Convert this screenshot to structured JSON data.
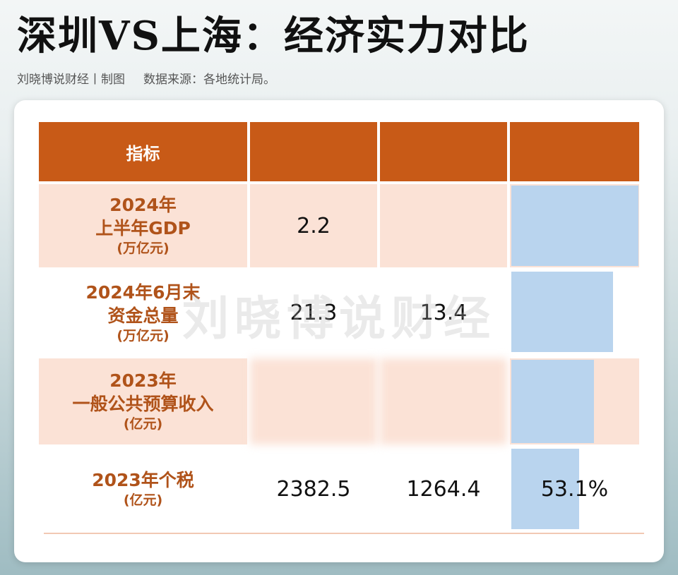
{
  "title": "深圳VS上海：经济实力对比",
  "subtitle": {
    "author": "刘晓博说财经丨制图",
    "source": "数据来源：各地统计局。"
  },
  "watermark": "刘晓博说财经",
  "colors": {
    "header_bg": "#c85a17",
    "row_pink": "#fbe2d6",
    "label_text": "#b0531a",
    "bar_blue": "#b9d4ee"
  },
  "table": {
    "headers": [
      "指标",
      "",
      "",
      ""
    ],
    "rows": [
      {
        "label_lines": [
          "2024年",
          "上半年GDP",
          "(万亿元)"
        ],
        "col1": "2.2",
        "col2": "",
        "col3": "",
        "bar_fraction": 1.0
      },
      {
        "label_lines": [
          "2024年6月末",
          "资金总量",
          "(万亿元)"
        ],
        "col1": "21.3",
        "col2": "13.4",
        "col3": "",
        "bar_fraction": 0.8
      },
      {
        "label_lines": [
          "2023年",
          "一般公共预算收入",
          "(亿元)"
        ],
        "col1": "",
        "col2": "",
        "col3": "",
        "bar_fraction": 0.65
      },
      {
        "label_lines": [
          "2023年个税",
          "(亿元)"
        ],
        "col1": "2382.5",
        "col2": "1264.4",
        "col3": "53.1%",
        "bar_fraction": 0.531
      }
    ]
  }
}
